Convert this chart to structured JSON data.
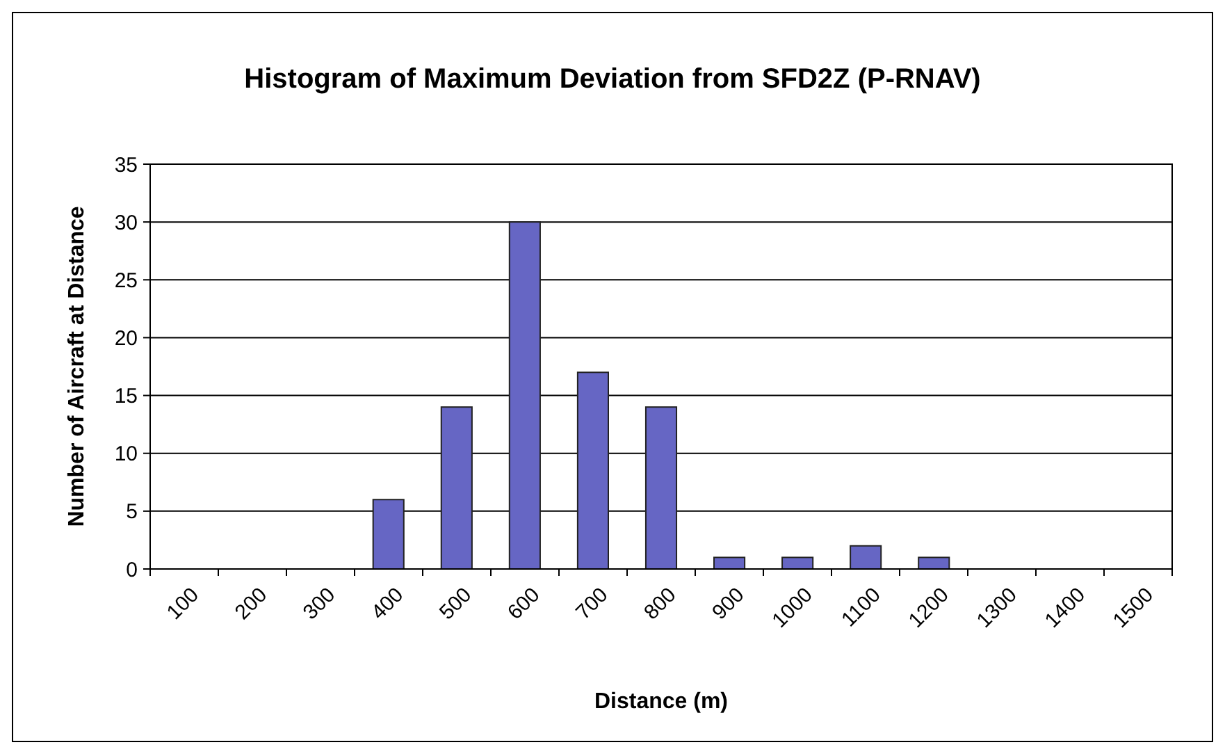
{
  "chart_data": {
    "type": "bar",
    "title": "Histogram of Maximum Deviation from SFD2Z (P-RNAV)",
    "xlabel": "Distance (m)",
    "ylabel": "Number of Aircraft at Distance",
    "categories": [
      "100",
      "200",
      "300",
      "400",
      "500",
      "600",
      "700",
      "800",
      "900",
      "1000",
      "1100",
      "1200",
      "1300",
      "1400",
      "1500"
    ],
    "values": [
      0,
      0,
      0,
      6,
      14,
      30,
      17,
      14,
      1,
      1,
      2,
      1,
      0,
      0,
      0
    ],
    "color": "#6666c4",
    "ylim": [
      0,
      35
    ],
    "yticks": [
      0,
      5,
      10,
      15,
      20,
      25,
      30,
      35
    ],
    "grid": "y"
  }
}
